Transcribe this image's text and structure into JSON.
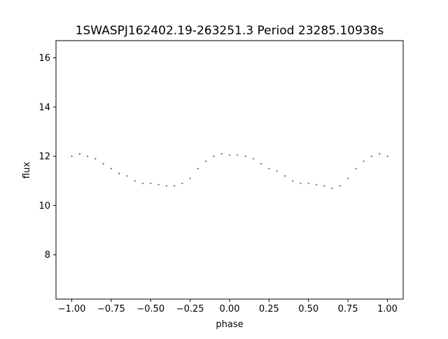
{
  "chart_data": {
    "type": "scatter",
    "title": "1SWASPJ162402.19-263251.3 Period 23285.10938s",
    "xlabel": "phase",
    "ylabel": "flux",
    "xlim": [
      -1.1,
      1.1
    ],
    "ylim": [
      6.2,
      16.7
    ],
    "xticks": [
      -1.0,
      -0.75,
      -0.5,
      -0.25,
      0.0,
      0.25,
      0.5,
      0.75,
      1.0
    ],
    "xtick_labels": [
      "−1.00",
      "−0.75",
      "−0.50",
      "−0.25",
      "0.00",
      "0.25",
      "0.50",
      "0.75",
      "1.00"
    ],
    "yticks": [
      8,
      10,
      12,
      14,
      16
    ],
    "ytick_labels": [
      "8",
      "10",
      "12",
      "14",
      "16"
    ],
    "grid": false,
    "legend": "none",
    "marker_color": "#1f77b4",
    "series": [
      {
        "x": [
          -1.0,
          -0.95,
          -0.9,
          -0.85,
          -0.8,
          -0.75,
          -0.7,
          -0.65,
          -0.6,
          -0.55,
          -0.5,
          -0.45,
          -0.4,
          -0.35,
          -0.3,
          -0.25,
          -0.2,
          -0.15,
          -0.1,
          -0.05,
          0.0,
          0.05,
          0.1,
          0.15,
          0.2,
          0.25,
          0.3,
          0.35,
          0.4,
          0.45,
          0.5,
          0.55,
          0.6,
          0.65,
          0.7,
          0.75,
          0.8,
          0.85,
          0.9,
          0.95,
          1.0
        ],
        "y": [
          12.0,
          12.1,
          12.0,
          11.9,
          11.7,
          11.5,
          11.3,
          11.2,
          11.0,
          10.9,
          10.9,
          10.85,
          10.8,
          10.8,
          10.9,
          11.1,
          11.5,
          11.8,
          12.0,
          12.1,
          12.05,
          12.05,
          12.0,
          11.9,
          11.7,
          11.5,
          11.4,
          11.2,
          11.0,
          10.9,
          10.9,
          10.85,
          10.8,
          10.7,
          10.8,
          11.1,
          11.5,
          11.8,
          12.0,
          12.1,
          12.0
        ]
      }
    ]
  }
}
